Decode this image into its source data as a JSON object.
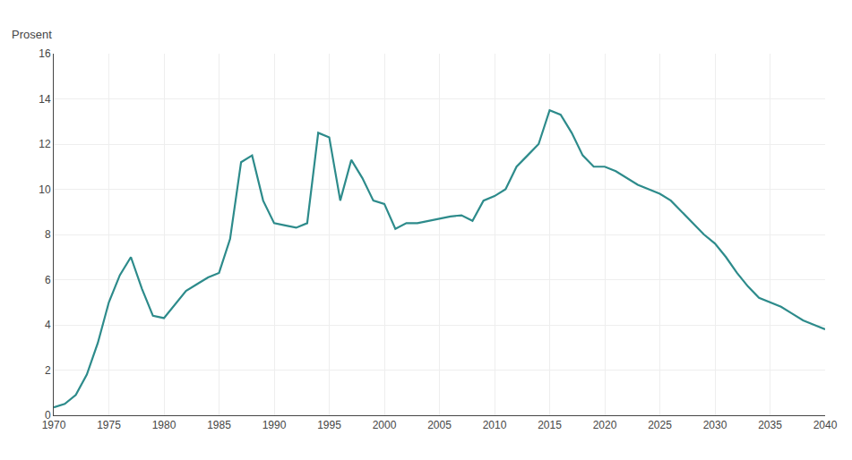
{
  "chart_data": {
    "type": "line",
    "ylabel": "Prosent",
    "x": [
      1970,
      1971,
      1972,
      1973,
      1974,
      1975,
      1976,
      1977,
      1978,
      1979,
      1980,
      1981,
      1982,
      1983,
      1984,
      1985,
      1986,
      1987,
      1988,
      1989,
      1990,
      1991,
      1992,
      1993,
      1994,
      1995,
      1996,
      1997,
      1998,
      1999,
      2000,
      2001,
      2002,
      2003,
      2004,
      2005,
      2006,
      2007,
      2008,
      2009,
      2010,
      2011,
      2012,
      2013,
      2014,
      2015,
      2016,
      2017,
      2018,
      2019,
      2020,
      2021,
      2022,
      2023,
      2024,
      2025,
      2026,
      2027,
      2028,
      2029,
      2030,
      2031,
      2032,
      2033,
      2034,
      2035,
      2036,
      2037,
      2038,
      2039,
      2040
    ],
    "values": [
      0.35,
      0.5,
      0.9,
      1.8,
      3.2,
      5.0,
      6.2,
      7.0,
      5.6,
      4.4,
      4.3,
      4.9,
      5.5,
      5.8,
      6.1,
      6.3,
      7.8,
      11.2,
      11.5,
      9.5,
      8.5,
      8.4,
      8.3,
      8.5,
      12.5,
      12.3,
      9.5,
      11.3,
      10.5,
      9.5,
      9.35,
      8.25,
      8.5,
      8.5,
      8.6,
      8.7,
      8.8,
      8.85,
      8.6,
      9.5,
      9.7,
      10.0,
      11.0,
      11.5,
      12.0,
      13.5,
      13.3,
      12.5,
      11.5,
      11.0,
      11.0,
      10.8,
      10.5,
      10.2,
      10.0,
      9.8,
      9.5,
      9.0,
      8.5,
      8.0,
      7.6,
      7.0,
      6.3,
      5.7,
      5.2,
      5.0,
      4.8,
      4.5,
      4.2,
      4.0,
      3.8
    ],
    "color": "#2d8b8b",
    "xlim": [
      1970,
      2040
    ],
    "ylim": [
      0,
      16
    ],
    "xticks": [
      1970,
      1975,
      1980,
      1985,
      1990,
      1995,
      2000,
      2005,
      2010,
      2015,
      2020,
      2025,
      2030,
      2035,
      2040
    ],
    "yticks": [
      0,
      2,
      4,
      6,
      8,
      10,
      12,
      14,
      16
    ],
    "grid": true
  }
}
